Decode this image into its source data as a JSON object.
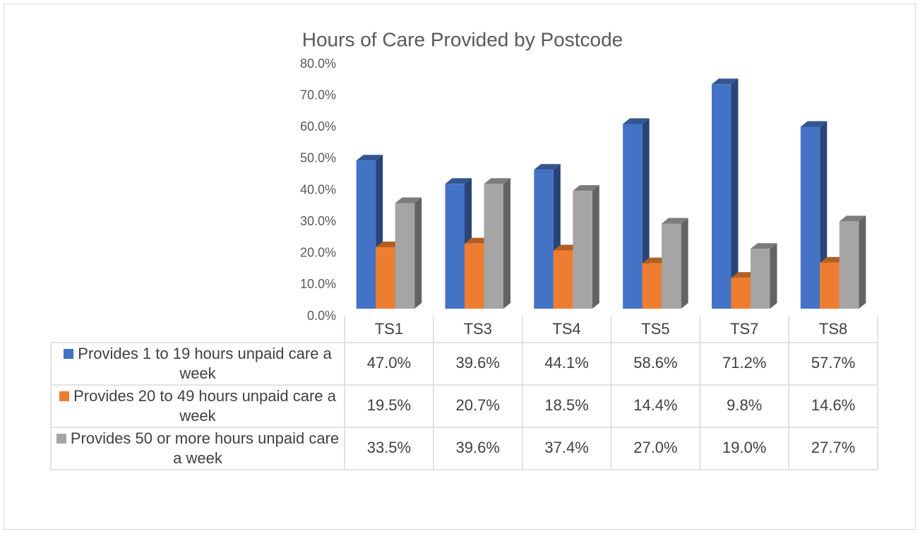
{
  "chart_data": {
    "type": "bar3d",
    "title": "Hours of Care Provided by Postcode",
    "categories": [
      "TS1",
      "TS3",
      "TS4",
      "TS5",
      "TS7",
      "TS8"
    ],
    "series": [
      {
        "name": "Provides 1 to 19 hours unpaid care a week",
        "color": "#4472c4",
        "values": [
          47.0,
          39.6,
          44.1,
          58.6,
          71.2,
          57.7
        ],
        "value_labels": [
          "47.0%",
          "39.6%",
          "44.1%",
          "58.6%",
          "71.2%",
          "57.7%"
        ]
      },
      {
        "name": "Provides 20 to 49 hours unpaid care a week",
        "color": "#ed7d31",
        "values": [
          19.5,
          20.7,
          18.5,
          14.4,
          9.8,
          14.6
        ],
        "value_labels": [
          "19.5%",
          "20.7%",
          "18.5%",
          "14.4%",
          "9.8%",
          "14.6%"
        ]
      },
      {
        "name": "Provides 50 or more hours unpaid care a week",
        "color": "#a5a5a5",
        "values": [
          33.5,
          39.6,
          37.4,
          27.0,
          19.0,
          27.7
        ],
        "value_labels": [
          "33.5%",
          "39.6%",
          "37.4%",
          "27.0%",
          "19.0%",
          "27.7%"
        ]
      }
    ],
    "ylim": [
      0,
      80
    ],
    "yticks": [
      {
        "value": 0,
        "label": "0.0%"
      },
      {
        "value": 10,
        "label": "10.0%"
      },
      {
        "value": 20,
        "label": "20.0%"
      },
      {
        "value": 30,
        "label": "30.0%"
      },
      {
        "value": 40,
        "label": "40.0%"
      },
      {
        "value": 50,
        "label": "50.0%"
      },
      {
        "value": 60,
        "label": "60.0%"
      },
      {
        "value": 70,
        "label": "70.0%"
      },
      {
        "value": 80,
        "label": "80.0%"
      }
    ],
    "grid": false
  }
}
